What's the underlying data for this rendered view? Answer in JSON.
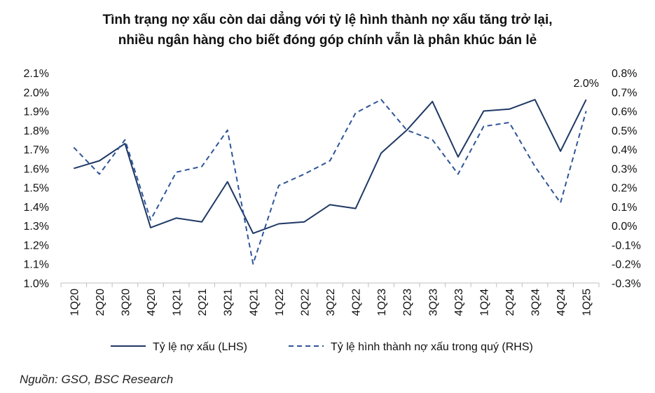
{
  "title_line1": "Tình trạng nợ xấu còn dai dẳng với tỷ lệ hình thành nợ xấu tăng trở lại,",
  "title_line2": "nhiều ngân hàng cho biết đóng góp chính vẫn là phân khúc bán lẻ",
  "source": "Nguồn: GSO, BSC Research",
  "chart_data": {
    "type": "line",
    "categories": [
      "1Q20",
      "2Q20",
      "3Q20",
      "4Q20",
      "1Q21",
      "2Q21",
      "3Q21",
      "4Q21",
      "1Q22",
      "2Q22",
      "3Q22",
      "4Q22",
      "1Q23",
      "2Q23",
      "3Q23",
      "4Q23",
      "1Q24",
      "2Q24",
      "3Q24",
      "4Q24",
      "1Q25"
    ],
    "series": [
      {
        "name": "Tỷ lệ nợ xấu (LHS)",
        "axis": "left",
        "style": "solid",
        "color": "#1f3864",
        "values": [
          1.6,
          1.64,
          1.73,
          1.29,
          1.34,
          1.32,
          1.53,
          1.26,
          1.31,
          1.32,
          1.41,
          1.39,
          1.68,
          1.8,
          1.95,
          1.66,
          1.9,
          1.91,
          1.96,
          1.69,
          1.96
        ]
      },
      {
        "name": "Tỷ lệ hình thành nợ xấu trong quý (RHS)",
        "axis": "right",
        "style": "dashed",
        "color": "#2e5597",
        "values": [
          0.41,
          0.27,
          0.45,
          0.03,
          0.28,
          0.31,
          0.5,
          -0.2,
          0.21,
          0.27,
          0.34,
          0.59,
          0.66,
          0.5,
          0.45,
          0.27,
          0.52,
          0.54,
          0.31,
          0.12,
          0.6
        ]
      }
    ],
    "y_left": {
      "min": 1.0,
      "max": 2.1,
      "step": 0.1,
      "tick_labels": [
        "1.0%",
        "1.1%",
        "1.2%",
        "1.3%",
        "1.4%",
        "1.5%",
        "1.6%",
        "1.7%",
        "1.8%",
        "1.9%",
        "2.0%",
        "2.1%"
      ]
    },
    "y_right": {
      "min": -0.3,
      "max": 0.8,
      "step": 0.1,
      "tick_labels": [
        "-0.3%",
        "-0.2%",
        "-0.1%",
        "0.0%",
        "0.1%",
        "0.2%",
        "0.3%",
        "0.4%",
        "0.5%",
        "0.6%",
        "0.7%",
        "0.8%"
      ],
      "negative_color": "#e00000"
    },
    "annotations": [
      {
        "text": "2.0%",
        "category": "1Q25"
      }
    ],
    "legend_position": "bottom"
  }
}
